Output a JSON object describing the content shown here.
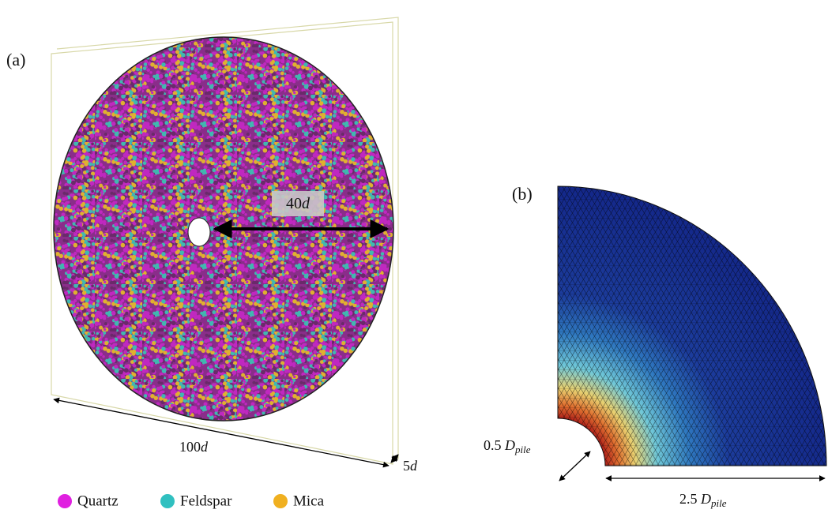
{
  "panel_a": {
    "label": "(a)",
    "radius_label": {
      "number": "40",
      "symbol": "d"
    },
    "width_label": {
      "number": "100",
      "symbol": "d"
    },
    "thickness_label": {
      "number": "5",
      "symbol": "d"
    },
    "legend": [
      "Quartz",
      "Feldspar",
      "Mica"
    ]
  },
  "panel_b": {
    "label": "(b)",
    "inner_label": {
      "number": "0.5",
      "symbol": "D",
      "subscript": "pile"
    },
    "outer_label": {
      "number": "2.5",
      "symbol": "D",
      "subscript": "pile"
    }
  }
}
